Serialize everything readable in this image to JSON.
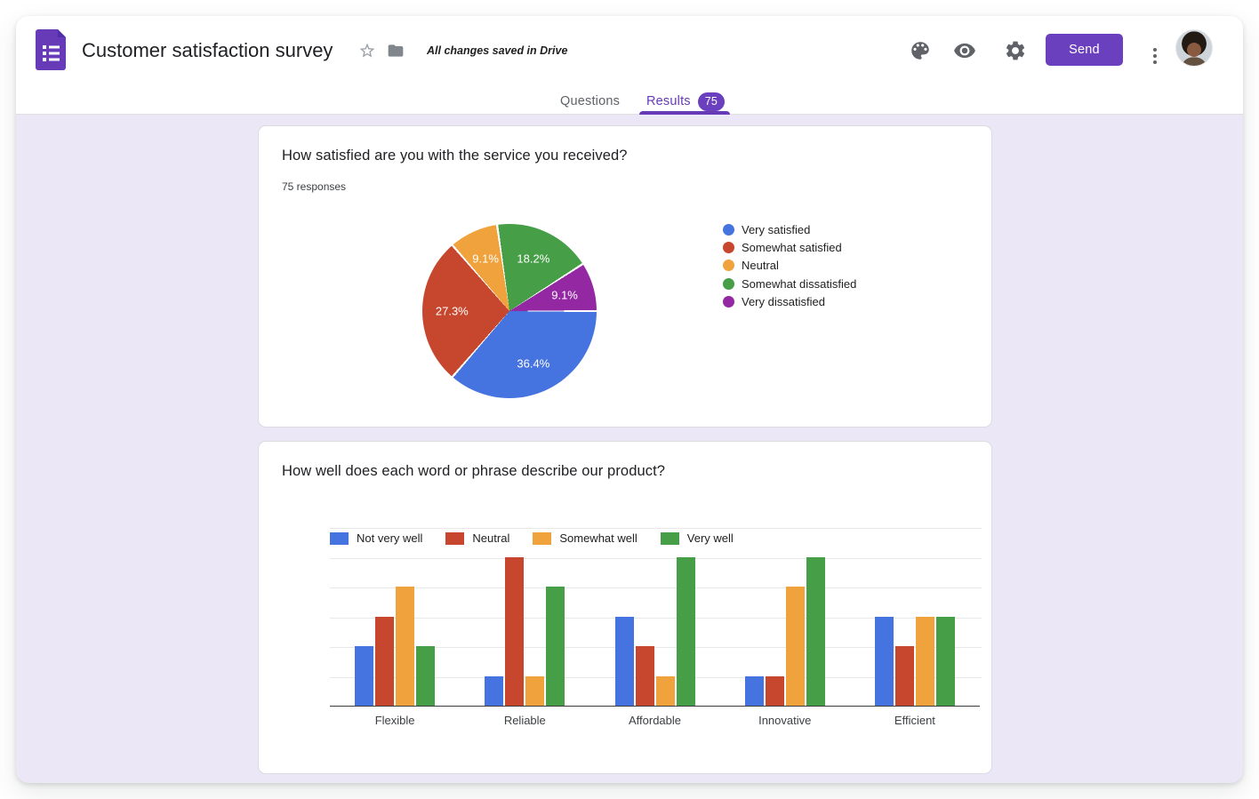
{
  "header": {
    "title": "Customer satisfaction survey",
    "saved_status": "All changes saved in Drive",
    "send_label": "Send",
    "icons": {
      "logo": "forms-logo-icon",
      "star": "star-icon",
      "folder": "move-folder-icon",
      "palette": "theme-palette-icon",
      "preview": "preview-eye-icon",
      "settings": "settings-gear-icon",
      "more": "more-vertical-icon",
      "avatar": "user-avatar"
    }
  },
  "tabs": {
    "questions": "Questions",
    "results": "Results",
    "results_badge": "75"
  },
  "cards": [
    {
      "title": "How satisfied are you with the service you received?",
      "responses": "75 responses"
    },
    {
      "title": "How well does each word or phrase describe our product?"
    }
  ],
  "chart_data": [
    {
      "type": "pie",
      "question": "How satisfied are you with the service you received?",
      "labels": [
        "Very satisfied",
        "Somewhat satisfied",
        "Neutral",
        "Somewhat dissatisfied",
        "Very dissatisfied"
      ],
      "values": [
        36.4,
        27.3,
        9.1,
        18.2,
        9.1
      ],
      "unit": "percent",
      "slice_labels": [
        "36.4%",
        "27.3%",
        "9.1%",
        "18.2%",
        "9.1%"
      ],
      "colors": [
        "#4573DF",
        "#C7472E",
        "#F0A33C",
        "#469E46",
        "#9428A3"
      ],
      "legend_position": "right",
      "start_angle_deg_from_top": 90,
      "direction": "clockwise"
    },
    {
      "type": "bar",
      "question": "How well does each word or phrase describe our product?",
      "categories": [
        "Flexible",
        "Reliable",
        "Affordable",
        "Innovative",
        "Efficient"
      ],
      "series": [
        {
          "name": "Not very well",
          "color": "#4573DF",
          "values": [
            2,
            1,
            3,
            1,
            3
          ]
        },
        {
          "name": "Neutral",
          "color": "#C7472E",
          "values": [
            3,
            5,
            2,
            1,
            2
          ]
        },
        {
          "name": "Somewhat well",
          "color": "#F0A33C",
          "values": [
            4,
            1,
            1,
            4,
            3
          ]
        },
        {
          "name": "Very well",
          "color": "#469E46",
          "values": [
            2,
            4,
            5,
            5,
            3
          ]
        }
      ],
      "ylim": [
        0,
        6
      ],
      "gridline_step": 1,
      "y_axis_labels_visible": false,
      "legend_position": "top",
      "grid": true
    }
  ],
  "colors": {
    "brand_purple": "#673AB7",
    "button_purple": "#6B40BF",
    "page_background": "#ECE7F6",
    "card_background": "#FFFFFF",
    "divider": "#E0E0E0",
    "text_primary": "#202124",
    "text_secondary": "#5F6368",
    "gridline": "#E8E8E8",
    "axis_line": "#3C3C3C"
  }
}
